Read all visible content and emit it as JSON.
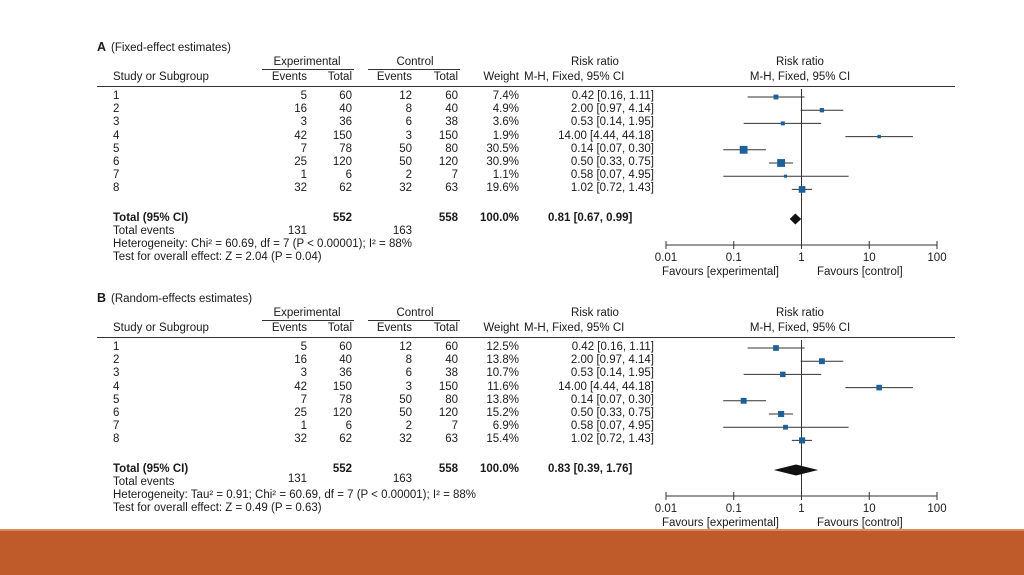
{
  "panels": [
    {
      "id": "A",
      "label": "A",
      "title": "(Fixed-effect estimates)",
      "header": {
        "experimental": "Experimental",
        "control": "Control",
        "risk_ratio": "Risk ratio",
        "study": "Study or Subgroup",
        "events": "Events",
        "total": "Total",
        "weight": "Weight",
        "method": "M-H, Fixed, 95% CI",
        "plot_title": "Risk ratio",
        "plot_method": "M-H, Fixed, 95% CI"
      },
      "rows": [
        {
          "study": "1",
          "e_events": "5",
          "e_total": "60",
          "c_events": "12",
          "c_total": "60",
          "weight": "7.4%",
          "ci": "0.42 [0.16, 1.11]"
        },
        {
          "study": "2",
          "e_events": "16",
          "e_total": "40",
          "c_events": "8",
          "c_total": "40",
          "weight": "4.9%",
          "ci": "2.00 [0.97, 4.14]"
        },
        {
          "study": "3",
          "e_events": "3",
          "e_total": "36",
          "c_events": "6",
          "c_total": "38",
          "weight": "3.6%",
          "ci": "0.53 [0.14, 1.95]"
        },
        {
          "study": "4",
          "e_events": "42",
          "e_total": "150",
          "c_events": "3",
          "c_total": "150",
          "weight": "1.9%",
          "ci": "14.00 [4.44, 44.18]"
        },
        {
          "study": "5",
          "e_events": "7",
          "e_total": "78",
          "c_events": "50",
          "c_total": "80",
          "weight": "30.5%",
          "ci": "0.14 [0.07, 0.30]"
        },
        {
          "study": "6",
          "e_events": "25",
          "e_total": "120",
          "c_events": "50",
          "c_total": "120",
          "weight": "30.9%",
          "ci": "0.50 [0.33, 0.75]"
        },
        {
          "study": "7",
          "e_events": "1",
          "e_total": "6",
          "c_events": "2",
          "c_total": "7",
          "weight": "1.1%",
          "ci": "0.58 [0.07, 4.95]"
        },
        {
          "study": "8",
          "e_events": "32",
          "e_total": "62",
          "c_events": "32",
          "c_total": "63",
          "weight": "19.6%",
          "ci": "1.02 [0.72, 1.43]"
        }
      ],
      "total": {
        "label": "Total (95% CI)",
        "e_total": "552",
        "c_total": "558",
        "weight": "100.0%",
        "ci": "0.81 [0.67, 0.99]"
      },
      "total_events": {
        "label": "Total events",
        "e": "131",
        "c": "163"
      },
      "heterogeneity": {
        "prefix": "Heterogeneity: ",
        "text": "Chi² = 60.69, df = 7 (P < 0.00001); I² = 88%"
      },
      "overall": "Test for overall effect: Z = 2.04 (P = 0.04)",
      "axis_ticks": [
        "0.01",
        "0.1",
        "1",
        "10",
        "100"
      ],
      "favours_left": "Favours [experimental]",
      "favours_right": "Favours [control]"
    },
    {
      "id": "B",
      "label": "B",
      "title": "(Random-effects estimates)",
      "header": {
        "experimental": "Experimental",
        "control": "Control",
        "risk_ratio": "Risk ratio",
        "study": "Study or Subgroup",
        "events": "Events",
        "total": "Total",
        "weight": "Weight",
        "method": "M-H, Fixed, 95% CI",
        "plot_title": "Risk ratio",
        "plot_method": "M-H, Fixed, 95% CI"
      },
      "rows": [
        {
          "study": "1",
          "e_events": "5",
          "e_total": "60",
          "c_events": "12",
          "c_total": "60",
          "weight": "12.5%",
          "ci": "0.42 [0.16, 1.11]"
        },
        {
          "study": "2",
          "e_events": "16",
          "e_total": "40",
          "c_events": "8",
          "c_total": "40",
          "weight": "13.8%",
          "ci": "2.00 [0.97, 4.14]"
        },
        {
          "study": "3",
          "e_events": "3",
          "e_total": "36",
          "c_events": "6",
          "c_total": "38",
          "weight": "10.7%",
          "ci": "0.53 [0.14, 1.95]"
        },
        {
          "study": "4",
          "e_events": "42",
          "e_total": "150",
          "c_events": "3",
          "c_total": "150",
          "weight": "11.6%",
          "ci": "14.00 [4.44, 44.18]"
        },
        {
          "study": "5",
          "e_events": "7",
          "e_total": "78",
          "c_events": "50",
          "c_total": "80",
          "weight": "13.8%",
          "ci": "0.14 [0.07, 0.30]"
        },
        {
          "study": "6",
          "e_events": "25",
          "e_total": "120",
          "c_events": "50",
          "c_total": "120",
          "weight": "15.2%",
          "ci": "0.50 [0.33, 0.75]"
        },
        {
          "study": "7",
          "e_events": "1",
          "e_total": "6",
          "c_events": "2",
          "c_total": "7",
          "weight": "6.9%",
          "ci": "0.58 [0.07, 4.95]"
        },
        {
          "study": "8",
          "e_events": "32",
          "e_total": "62",
          "c_events": "32",
          "c_total": "63",
          "weight": "15.4%",
          "ci": "1.02 [0.72, 1.43]"
        }
      ],
      "total": {
        "label": "Total (95% CI)",
        "e_total": "552",
        "c_total": "558",
        "weight": "100.0%",
        "ci": "0.83 [0.39, 1.76]"
      },
      "total_events": {
        "label": "Total events",
        "e": "131",
        "c": "163"
      },
      "heterogeneity": {
        "prefix": "Heterogeneity: ",
        "text": "Tau² = 0.91; Chi² = 60.69, df = 7 (P < 0.00001); I² = 88%"
      },
      "overall": "Test for overall effect: Z = 0.49 (P = 0.63)",
      "axis_ticks": [
        "0.01",
        "0.1",
        "1",
        "10",
        "100"
      ],
      "favours_left": "Favours [experimental]",
      "favours_right": "Favours [control]"
    }
  ],
  "colors": {
    "marker": "#1f5f9a",
    "line": "#333333",
    "footer": "#bf5a2a"
  },
  "chart_data": [
    {
      "type": "forest",
      "title": "A (Fixed-effect estimates)",
      "xlabel": "Risk ratio",
      "xscale": "log",
      "xlim": [
        0.01,
        100
      ],
      "categories": [
        "1",
        "2",
        "3",
        "4",
        "5",
        "6",
        "7",
        "8"
      ],
      "values": [
        0.42,
        2.0,
        0.53,
        14.0,
        0.14,
        0.5,
        0.58,
        1.02
      ],
      "ci_low": [
        0.16,
        0.97,
        0.14,
        4.44,
        0.07,
        0.33,
        0.07,
        0.72
      ],
      "ci_high": [
        1.11,
        4.14,
        1.95,
        44.18,
        0.3,
        0.75,
        4.95,
        1.43
      ],
      "weights": [
        7.4,
        4.9,
        3.6,
        1.9,
        30.5,
        30.9,
        1.1,
        19.6
      ],
      "pooled": {
        "value": 0.81,
        "ci_low": 0.67,
        "ci_high": 0.99
      }
    },
    {
      "type": "forest",
      "title": "B (Random-effects estimates)",
      "xlabel": "Risk ratio",
      "xscale": "log",
      "xlim": [
        0.01,
        100
      ],
      "categories": [
        "1",
        "2",
        "3",
        "4",
        "5",
        "6",
        "7",
        "8"
      ],
      "values": [
        0.42,
        2.0,
        0.53,
        14.0,
        0.14,
        0.5,
        0.58,
        1.02
      ],
      "ci_low": [
        0.16,
        0.97,
        0.14,
        4.44,
        0.07,
        0.33,
        0.07,
        0.72
      ],
      "ci_high": [
        1.11,
        4.14,
        1.95,
        44.18,
        0.3,
        0.75,
        4.95,
        1.43
      ],
      "weights": [
        12.5,
        13.8,
        10.7,
        11.6,
        13.8,
        15.2,
        6.9,
        15.4
      ],
      "pooled": {
        "value": 0.83,
        "ci_low": 0.39,
        "ci_high": 1.76
      }
    }
  ]
}
